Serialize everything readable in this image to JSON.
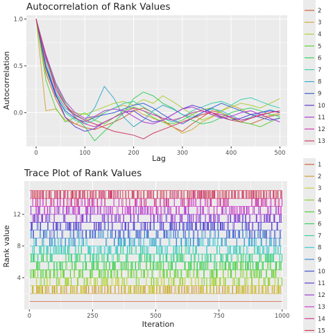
{
  "chart_data": [
    {
      "type": "line",
      "title": "Autocorrelation of Rank Values",
      "xlabel": "Lag",
      "ylabel": "Autocorrelation",
      "xlim": [
        -20,
        515
      ],
      "ylim": [
        -0.36,
        1.04
      ],
      "xticks": [
        0,
        100,
        200,
        300,
        400,
        500
      ],
      "yticks": [
        0.0,
        0.5,
        1.0
      ],
      "ytick_labels": [
        "0.0",
        "0.5",
        "1.0"
      ],
      "grid": true,
      "legend_position": "right",
      "legend_labels": [
        "2",
        "3",
        "4",
        "5",
        "6",
        "7",
        "8",
        "9",
        "10",
        "11",
        "12",
        "13"
      ],
      "lags": [
        0,
        20,
        40,
        60,
        80,
        100,
        120,
        140,
        160,
        180,
        200,
        220,
        240,
        260,
        280,
        300,
        320,
        340,
        360,
        380,
        400,
        420,
        440,
        460,
        480,
        500
      ],
      "series": [
        {
          "name": "2",
          "values": [
            1.0,
            0.42,
            0.15,
            -0.05,
            -0.12,
            -0.16,
            -0.18,
            -0.14,
            -0.1,
            -0.05,
            0.02,
            0.05,
            0.0,
            -0.08,
            -0.15,
            -0.2,
            -0.12,
            -0.05,
            0.02,
            0.0,
            -0.05,
            -0.1,
            -0.12,
            -0.08,
            -0.04,
            -0.02
          ]
        },
        {
          "name": "3",
          "values": [
            1.0,
            0.02,
            0.04,
            -0.08,
            -0.12,
            -0.08,
            -0.05,
            0.0,
            0.05,
            0.08,
            0.04,
            -0.02,
            -0.06,
            -0.1,
            -0.15,
            -0.22,
            -0.18,
            -0.1,
            -0.05,
            0.02,
            0.08,
            0.04,
            -0.02,
            -0.05,
            -0.03,
            0.0
          ]
        },
        {
          "name": "4",
          "values": [
            1.0,
            0.45,
            0.2,
            0.05,
            0.0,
            -0.02,
            0.02,
            0.06,
            0.1,
            0.12,
            0.08,
            0.14,
            0.1,
            0.18,
            0.12,
            0.05,
            -0.02,
            -0.08,
            -0.04,
            0.02,
            0.06,
            0.1,
            0.08,
            0.05,
            0.1,
            0.15
          ]
        },
        {
          "name": "5",
          "values": [
            1.0,
            0.35,
            0.05,
            -0.1,
            -0.05,
            0.0,
            -0.08,
            -0.12,
            -0.05,
            0.02,
            0.06,
            0.02,
            -0.05,
            -0.1,
            -0.12,
            -0.08,
            -0.02,
            0.03,
            0.05,
            0.0,
            -0.06,
            -0.1,
            -0.12,
            -0.15,
            -0.1,
            -0.05
          ]
        },
        {
          "name": "6",
          "values": [
            1.0,
            0.6,
            0.3,
            0.1,
            -0.05,
            -0.15,
            -0.3,
            -0.2,
            -0.1,
            0.0,
            0.15,
            0.22,
            0.18,
            0.1,
            0.05,
            -0.02,
            -0.08,
            -0.12,
            -0.1,
            -0.05,
            0.0,
            0.03,
            0.05,
            0.02,
            -0.02,
            -0.04
          ]
        },
        {
          "name": "7",
          "values": [
            1.0,
            0.55,
            0.2,
            0.0,
            -0.08,
            -0.12,
            -0.08,
            0.0,
            0.05,
            0.1,
            0.12,
            0.06,
            0.0,
            -0.06,
            -0.1,
            -0.05,
            0.02,
            0.06,
            0.1,
            0.12,
            0.08,
            0.14,
            0.16,
            0.12,
            0.08,
            0.05
          ]
        },
        {
          "name": "8",
          "values": [
            1.0,
            0.5,
            0.22,
            0.05,
            -0.03,
            -0.08,
            0.05,
            0.28,
            0.15,
            -0.05,
            -0.15,
            -0.08,
            0.02,
            0.08,
            0.04,
            -0.02,
            -0.05,
            0.0,
            0.04,
            0.02,
            -0.03,
            -0.08,
            -0.05,
            0.0,
            0.03,
            0.0
          ]
        },
        {
          "name": "9",
          "values": [
            1.0,
            0.48,
            0.18,
            0.02,
            -0.06,
            -0.1,
            -0.05,
            -0.02,
            0.0,
            0.04,
            0.08,
            0.1,
            0.05,
            -0.02,
            -0.08,
            -0.12,
            -0.06,
            0.0,
            0.05,
            0.1,
            0.06,
            0.02,
            -0.02,
            -0.05,
            -0.08,
            -0.06
          ]
        },
        {
          "name": "10",
          "values": [
            1.0,
            0.5,
            0.2,
            -0.05,
            -0.15,
            -0.2,
            -0.17,
            -0.1,
            -0.05,
            0.0,
            0.02,
            -0.05,
            -0.1,
            -0.08,
            -0.02,
            0.04,
            0.08,
            0.05,
            0.0,
            -0.05,
            -0.08,
            -0.06,
            -0.02,
            0.0,
            0.02,
            0.0
          ]
        },
        {
          "name": "11",
          "values": [
            1.0,
            0.62,
            0.32,
            0.12,
            0.0,
            -0.06,
            -0.04,
            0.02,
            0.04,
            0.02,
            -0.04,
            -0.1,
            -0.12,
            -0.08,
            -0.02,
            0.04,
            0.06,
            0.02,
            -0.02,
            -0.06,
            -0.04,
            0.0,
            0.02,
            -0.02,
            -0.06,
            -0.1
          ]
        },
        {
          "name": "12",
          "values": [
            1.0,
            0.58,
            0.28,
            0.08,
            -0.05,
            -0.12,
            -0.15,
            -0.1,
            -0.05,
            0.0,
            0.05,
            0.02,
            -0.02,
            -0.06,
            -0.08,
            -0.05,
            0.0,
            0.02,
            0.0,
            -0.02,
            -0.05,
            -0.08,
            -0.06,
            -0.03,
            0.0,
            0.02
          ]
        },
        {
          "name": "13",
          "values": [
            1.0,
            0.6,
            0.25,
            0.08,
            -0.02,
            -0.08,
            -0.12,
            -0.16,
            -0.2,
            -0.22,
            -0.24,
            -0.28,
            -0.22,
            -0.18,
            -0.14,
            -0.1,
            -0.06,
            -0.02,
            0.0,
            -0.04,
            -0.08,
            -0.1,
            -0.06,
            -0.02,
            0.0,
            0.02
          ]
        }
      ]
    },
    {
      "type": "line",
      "title": "Trace Plot of Rank Values",
      "xlabel": "Iteration",
      "ylabel": "Rank value",
      "xlim": [
        -20,
        1020
      ],
      "ylim": [
        0,
        16.2
      ],
      "xticks": [
        0,
        250,
        500,
        750,
        1000
      ],
      "yticks": [
        4,
        8,
        12
      ],
      "grid": true,
      "legend_position": "right",
      "legend_labels": [
        "1",
        "2",
        "3",
        "4",
        "5",
        "6",
        "7",
        "8",
        "9",
        "10",
        "11",
        "12",
        "13",
        "14",
        "15"
      ],
      "iterations": [
        1,
        1000
      ],
      "series": [
        {
          "name": "1",
          "values": [
            1
          ]
        },
        {
          "name": "2",
          "values": [
            2,
            3
          ]
        },
        {
          "name": "3",
          "values": [
            3,
            2,
            4
          ]
        },
        {
          "name": "4",
          "values": [
            4,
            3,
            5
          ]
        },
        {
          "name": "5",
          "values": [
            5,
            4,
            6
          ]
        },
        {
          "name": "6",
          "values": [
            6,
            5,
            7
          ]
        },
        {
          "name": "7",
          "values": [
            7,
            6,
            8
          ]
        },
        {
          "name": "8",
          "values": [
            8,
            7,
            9
          ]
        },
        {
          "name": "9",
          "values": [
            9,
            8,
            10
          ]
        },
        {
          "name": "10",
          "values": [
            10,
            9,
            11
          ]
        },
        {
          "name": "11",
          "values": [
            11,
            10,
            12
          ]
        },
        {
          "name": "12",
          "values": [
            12,
            11,
            13
          ]
        },
        {
          "name": "13",
          "values": [
            13,
            12,
            14
          ]
        },
        {
          "name": "14",
          "values": [
            14,
            13,
            15
          ]
        },
        {
          "name": "15",
          "values": [
            15,
            14
          ]
        }
      ]
    }
  ]
}
